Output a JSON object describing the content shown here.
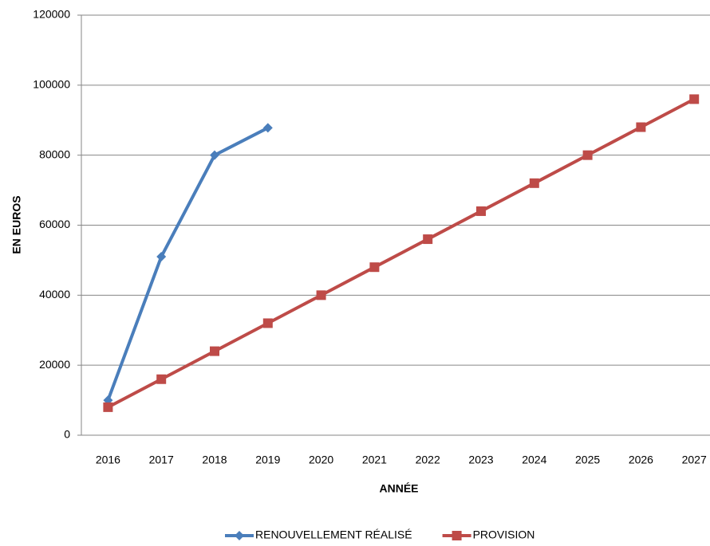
{
  "chart_data": {
    "type": "line",
    "x_label": "ANNÉE",
    "y_label": "EN EUROS",
    "categories": [
      "2016",
      "2017",
      "2018",
      "2019",
      "2020",
      "2021",
      "2022",
      "2023",
      "2024",
      "2025",
      "2026",
      "2027"
    ],
    "series": [
      {
        "name": "RENOUVELLEMENT RÉALISÉ",
        "color": "#4a7ebb",
        "marker": "diamond",
        "values": [
          10000,
          51000,
          80000,
          87800,
          null,
          null,
          null,
          null,
          null,
          null,
          null,
          null
        ]
      },
      {
        "name": "PROVISION",
        "color": "#be4b48",
        "marker": "square",
        "values": [
          8000,
          16000,
          24000,
          32000,
          40000,
          48000,
          56000,
          64000,
          72000,
          80000,
          88000,
          96000
        ]
      }
    ],
    "ylim": [
      0,
      120000
    ],
    "yticks": [
      0,
      20000,
      40000,
      60000,
      80000,
      100000,
      120000
    ],
    "grid": true,
    "legend": "bottom"
  }
}
